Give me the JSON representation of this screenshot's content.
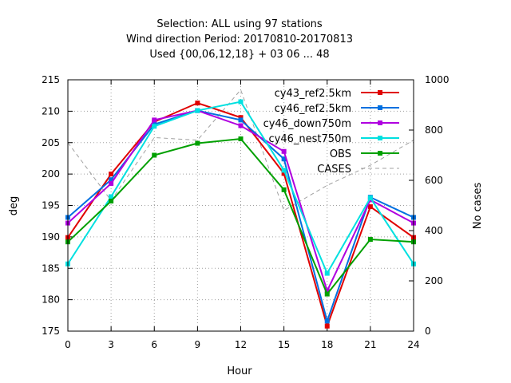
{
  "chart_data": {
    "type": "line",
    "title_lines": [
      "Selection: ALL using    97 stations",
      "Wind direction   Period: 20170810-20170813",
      "Used {00,06,12,18} + 03 06 ... 48"
    ],
    "xlabel": "Hour",
    "ylabel": "deg",
    "y2label": "No cases",
    "x": [
      0,
      3,
      6,
      9,
      12,
      15,
      18,
      21,
      24
    ],
    "xlim": [
      0,
      24
    ],
    "ylim": [
      175,
      215
    ],
    "y2lim": [
      0,
      1000
    ],
    "x_ticks": [
      "0",
      "3",
      "6",
      "9",
      "12",
      "15",
      "18",
      "21",
      "24"
    ],
    "y_ticks": [
      "175",
      "180",
      "185",
      "190",
      "195",
      "200",
      "205",
      "210",
      "215"
    ],
    "y2_ticks": [
      "0",
      "200",
      "400",
      "600",
      "800",
      "1000"
    ],
    "grid": true,
    "legend_position": "top-right",
    "series": [
      {
        "name": "cy43_ref2.5km",
        "color": "#e00000",
        "values": [
          189.9,
          200.0,
          208.3,
          211.3,
          209.0,
          200.1,
          175.8,
          194.8,
          189.9
        ]
      },
      {
        "name": "cy46_ref2.5km",
        "color": "#0070e0",
        "values": [
          193.1,
          199.1,
          207.9,
          210.1,
          208.6,
          202.4,
          176.6,
          196.3,
          193.1
        ]
      },
      {
        "name": "cy46_down750m",
        "color": "#b000e0",
        "values": [
          192.2,
          198.5,
          208.6,
          210.1,
          207.7,
          203.6,
          181.4,
          195.9,
          192.2
        ]
      },
      {
        "name": "cy46_nest750m",
        "color": "#00e0e0",
        "values": [
          185.7,
          196.4,
          207.6,
          210.1,
          211.5,
          200.6,
          184.2,
          196.2,
          185.7
        ]
      },
      {
        "name": "OBS",
        "color": "#00a000",
        "values": [
          189.2,
          195.7,
          203.0,
          204.9,
          205.6,
          197.5,
          180.9,
          189.6,
          189.2
        ]
      },
      {
        "name": "CASES",
        "color": "#a0a0a0",
        "axis": "y2",
        "dashed": true,
        "values": [
          750,
          520,
          770,
          760,
          960,
          480,
          580,
          660,
          760
        ]
      }
    ]
  }
}
